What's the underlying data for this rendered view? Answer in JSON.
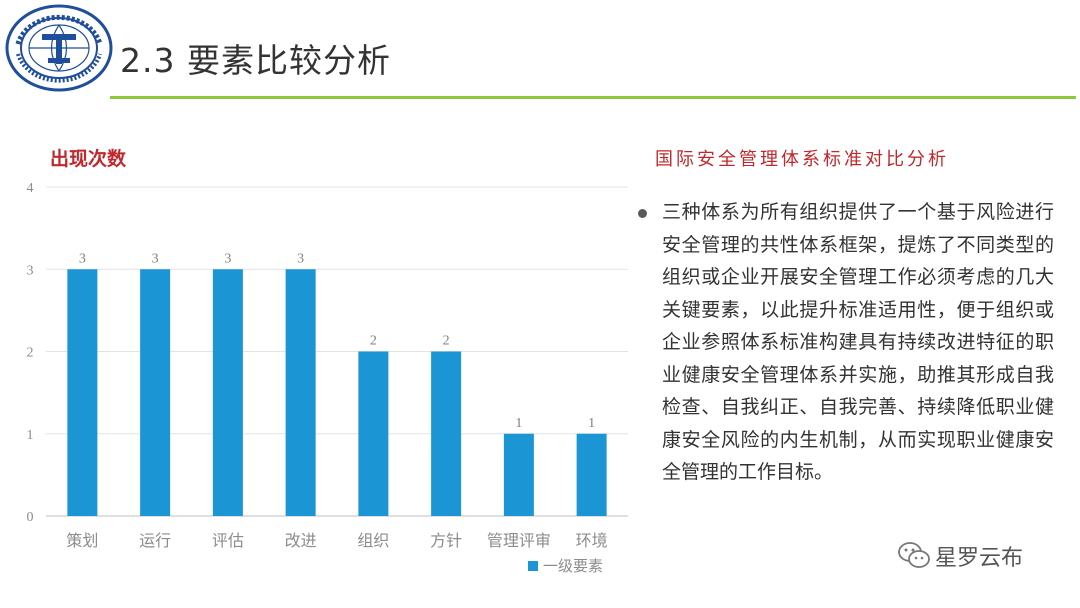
{
  "slide": {
    "title": "2.3 要素比较分析",
    "logo_text": "中国地质大学 CHINA UNIVERSITY OF GEOSCIENCES",
    "accent_color": "#8dc63f",
    "heading_color": "#c0282d"
  },
  "right_panel": {
    "heading": "国际安全管理体系标准对比分析",
    "bullet_text": "三种体系为所有组织提供了一个基于风险进行安全管理的共性体系框架，提炼了不同类型的组织或企业开展安全管理工作必须考虑的几大关键要素，以此提升标准适用性，便于组织或企业参照体系标准构建具有持续改进特征的职业健康安全管理体系并实施，助推其形成自我检查、自我纠正、自我完善、持续降低职业健康安全风险的内生机制，从而实现职业健康安全管理的工作目标。"
  },
  "watermark": {
    "text": "星罗云布",
    "icon": "wechat-icon"
  },
  "chart_data": {
    "type": "bar",
    "title": "出现次数",
    "categories": [
      "策划",
      "运行",
      "评估",
      "改进",
      "组织",
      "方针",
      "管理评审",
      "环境"
    ],
    "series": [
      {
        "name": "一级要素",
        "values": [
          3,
          3,
          3,
          3,
          2,
          2,
          1,
          1
        ],
        "color": "#1b95d4"
      }
    ],
    "ylim": [
      0,
      4
    ],
    "yticks": [
      0,
      1,
      2,
      3,
      4
    ],
    "grid": true,
    "legend": "bottom-right",
    "data_labels": true
  }
}
